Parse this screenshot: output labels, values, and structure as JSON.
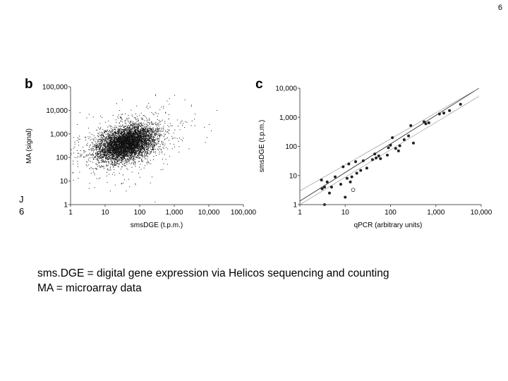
{
  "page": {
    "number": "6"
  },
  "chart_data": [
    {
      "panel": "b",
      "type": "scatter",
      "xlabel": "smsDGE (t.p.m.)",
      "ylabel": "MA (signal)",
      "xscale": "log",
      "yscale": "log",
      "xlim": [
        1,
        100000
      ],
      "ylim": [
        1,
        100000
      ],
      "xticks": [
        "1",
        "10",
        "100",
        "1,000",
        "10,000",
        "100,000"
      ],
      "yticks": [
        "1",
        "10",
        "100",
        "1,000",
        "10,000",
        "100,000"
      ],
      "point_count": 6000,
      "cloud": {
        "center": [
          40,
          400
        ],
        "main_axis_slope": 0.75,
        "spread_decades": [
          0.45,
          0.3
        ]
      }
    },
    {
      "panel": "c",
      "type": "scatter",
      "xlabel": "qPCR (arbitrary units)",
      "ylabel": "smsDGE (t.p.m.)",
      "xscale": "log",
      "yscale": "log",
      "xlim": [
        1,
        10000
      ],
      "ylim": [
        1,
        10000
      ],
      "xticks": [
        "1",
        "10",
        "100",
        "1,000",
        "10,000"
      ],
      "yticks": [
        "1",
        "10",
        "100",
        "1,000",
        "10,000"
      ],
      "fit_line": {
        "slope": 1.0,
        "intercept_decades": 0.12
      },
      "band_offset_decades": 0.35,
      "points": [
        [
          3,
          7
        ],
        [
          3.1,
          3.5
        ],
        [
          3.5,
          4
        ],
        [
          4.5,
          2.5
        ],
        [
          5,
          4
        ],
        [
          4,
          6
        ],
        [
          6,
          9
        ],
        [
          8,
          5
        ],
        [
          9,
          20
        ],
        [
          11,
          8
        ],
        [
          12,
          25
        ],
        [
          13,
          6
        ],
        [
          14,
          9
        ],
        [
          17,
          30
        ],
        [
          18,
          12
        ],
        [
          22,
          15
        ],
        [
          25,
          32
        ],
        [
          30,
          18
        ],
        [
          40,
          35
        ],
        [
          45,
          55
        ],
        [
          48,
          40
        ],
        [
          55,
          47
        ],
        [
          60,
          38
        ],
        [
          85,
          50
        ],
        [
          90,
          90
        ],
        [
          100,
          110
        ],
        [
          110,
          200
        ],
        [
          130,
          85
        ],
        [
          150,
          70
        ],
        [
          160,
          105
        ],
        [
          200,
          170
        ],
        [
          250,
          230
        ],
        [
          280,
          520
        ],
        [
          320,
          130
        ],
        [
          550,
          700
        ],
        [
          600,
          600
        ],
        [
          700,
          650
        ],
        [
          1200,
          1300
        ],
        [
          1500,
          1400
        ],
        [
          2000,
          1700
        ],
        [
          3500,
          2800
        ],
        [
          3.5,
          1
        ],
        [
          10,
          1.8
        ]
      ],
      "open_points": [
        [
          15,
          3.2
        ]
      ]
    }
  ],
  "caption": {
    "line1": "sms.DGE = digital gene expression via Helicos sequencing and counting",
    "line2": "MA = microarray data"
  }
}
